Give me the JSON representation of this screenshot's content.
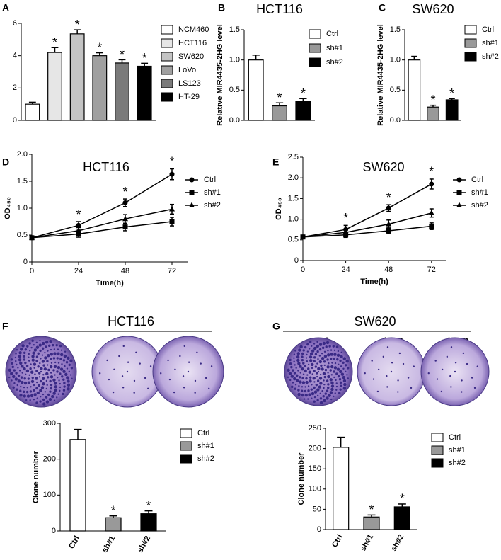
{
  "chart_data": [
    {
      "type": "bar",
      "panel": "A",
      "ylabel": "Relative MIR4435-2HG level",
      "categories": [
        "NCM460",
        "HCT116",
        "SW620",
        "LoVo",
        "LS123",
        "HT-29"
      ],
      "values": [
        1.0,
        4.2,
        5.35,
        4.0,
        3.55,
        3.35
      ],
      "errors": [
        0.12,
        0.3,
        0.25,
        0.18,
        0.2,
        0.18
      ],
      "colors": [
        "#ffffff",
        "#e6e6e6",
        "#c4c4c4",
        "#a0a0a0",
        "#7a7a7a",
        "#000000"
      ],
      "value_annotations": [
        null,
        "*",
        "*",
        "*",
        "*",
        "*"
      ],
      "ylim": [
        0,
        6
      ],
      "yticks": [
        0,
        2,
        4,
        6
      ],
      "legend": "right"
    },
    {
      "type": "bar",
      "panel": "B",
      "title": "HCT116",
      "ylabel": "Relative MIR4435-2HG level",
      "categories": [
        "Ctrl",
        "sh#1",
        "sh#2"
      ],
      "values": [
        1.0,
        0.24,
        0.31
      ],
      "errors": [
        0.08,
        0.05,
        0.05
      ],
      "colors": [
        "#ffffff",
        "#999999",
        "#000000"
      ],
      "value_annotations": [
        null,
        "*",
        "*"
      ],
      "ylim": [
        0,
        1.5
      ],
      "yticks": [
        {
          "value": 0,
          "label": "0.0"
        },
        0.5,
        {
          "value": 1,
          "label": "1.0"
        },
        1.5
      ],
      "legend": "right"
    },
    {
      "type": "bar",
      "panel": "C",
      "title": "SW620",
      "ylabel": "Relative MIR4435-2HG level",
      "categories": [
        "Ctrl",
        "sh#1",
        "sh#2"
      ],
      "values": [
        1.0,
        0.22,
        0.34
      ],
      "errors": [
        0.06,
        0.03,
        0.02
      ],
      "colors": [
        "#ffffff",
        "#999999",
        "#000000"
      ],
      "value_annotations": [
        null,
        "*",
        "*"
      ],
      "ylim": [
        0,
        1.5
      ],
      "yticks": [
        {
          "value": 0,
          "label": "0.0"
        },
        0.5,
        {
          "value": 1,
          "label": "1.0"
        },
        1.5
      ],
      "legend": "right"
    },
    {
      "type": "line",
      "panel": "D",
      "title": "HCT116",
      "xlabel": "Time(h)",
      "ylabel": "OD₄₅₀",
      "x": [
        0,
        24,
        48,
        72
      ],
      "xlim": [
        0,
        80
      ],
      "xticks": [
        0,
        24,
        48,
        72
      ],
      "ylim": [
        0,
        2
      ],
      "yticks": [
        0,
        0.5,
        {
          "value": 1,
          "label": "1.0"
        },
        1.5,
        {
          "value": 2,
          "label": "2.0"
        }
      ],
      "series": [
        {
          "name": "Ctrl",
          "color": "#000000",
          "marker": "circle",
          "values": [
            0.45,
            0.68,
            1.1,
            1.63
          ],
          "errors": [
            0.02,
            0.07,
            0.07,
            0.1
          ]
        },
        {
          "name": "sh#1",
          "color": "#000000",
          "marker": "square",
          "values": [
            0.45,
            0.52,
            0.65,
            0.75
          ],
          "errors": [
            0,
            0.06,
            0.07,
            0.08
          ]
        },
        {
          "name": "sh#2",
          "color": "#000000",
          "marker": "triangle",
          "values": [
            0.45,
            0.58,
            0.8,
            0.98
          ],
          "errors": [
            0,
            0.06,
            0.08,
            0.09
          ]
        }
      ],
      "value_annotations": [
        null,
        "*",
        "*",
        "*"
      ],
      "legend": "right"
    },
    {
      "type": "line",
      "panel": "E",
      "title": "SW620",
      "xlabel": "Time(h)",
      "ylabel": "OD₄₅₀",
      "x": [
        0,
        24,
        48,
        72
      ],
      "xlim": [
        0,
        80
      ],
      "xticks": [
        0,
        24,
        48,
        72
      ],
      "ylim": [
        0,
        2.5
      ],
      "yticks": [
        0,
        0.5,
        {
          "value": 1,
          "label": "1.0"
        },
        1.5,
        {
          "value": 2,
          "label": "2.0"
        },
        2.5
      ],
      "series": [
        {
          "name": "Ctrl",
          "color": "#000000",
          "marker": "circle",
          "values": [
            0.57,
            0.75,
            1.27,
            1.85
          ],
          "errors": [
            0.03,
            0.1,
            0.08,
            0.12
          ]
        },
        {
          "name": "sh#1",
          "color": "#000000",
          "marker": "square",
          "values": [
            0.57,
            0.62,
            0.72,
            0.83
          ],
          "errors": [
            0.03,
            0.06,
            0.07,
            0.08
          ]
        },
        {
          "name": "sh#2",
          "color": "#000000",
          "marker": "triangle",
          "values": [
            0.57,
            0.68,
            0.88,
            1.15
          ],
          "errors": [
            0.03,
            0.06,
            0.1,
            0.1
          ]
        }
      ],
      "value_annotations": [
        null,
        "*",
        "*",
        "*"
      ],
      "legend": "right"
    },
    {
      "type": "image",
      "panel": "F",
      "title": "HCT116",
      "categories": [
        "Ctrl",
        "sh#1",
        "sh#2"
      ]
    },
    {
      "type": "bar",
      "ylabel": "Clone number",
      "categories": [
        "Ctrl",
        "sh#1",
        "sh#2"
      ],
      "values": [
        255,
        37,
        48
      ],
      "errors": [
        28,
        5,
        8
      ],
      "colors": [
        "#ffffff",
        "#999999",
        "#000000"
      ],
      "value_annotations": [
        null,
        "*",
        "*"
      ],
      "ylim": [
        0,
        300
      ],
      "yticks": [
        0,
        100,
        200,
        300
      ],
      "x_labels_rotated": true,
      "legend": "right"
    },
    {
      "type": "image",
      "panel": "G",
      "title": "SW620",
      "categories": [
        "Ctrl",
        "sh#1",
        "sh#2"
      ]
    },
    {
      "type": "bar",
      "ylabel": "Clone number",
      "categories": [
        "Ctrl",
        "sh#1",
        "sh#2"
      ],
      "values": [
        203,
        31,
        56
      ],
      "errors": [
        25,
        5,
        7
      ],
      "colors": [
        "#ffffff",
        "#999999",
        "#000000"
      ],
      "value_annotations": [
        null,
        "*",
        "*"
      ],
      "ylim": [
        0,
        250
      ],
      "yticks": [
        0,
        50,
        100,
        150,
        200,
        250
      ],
      "x_labels_rotated": true,
      "legend": "right"
    }
  ]
}
